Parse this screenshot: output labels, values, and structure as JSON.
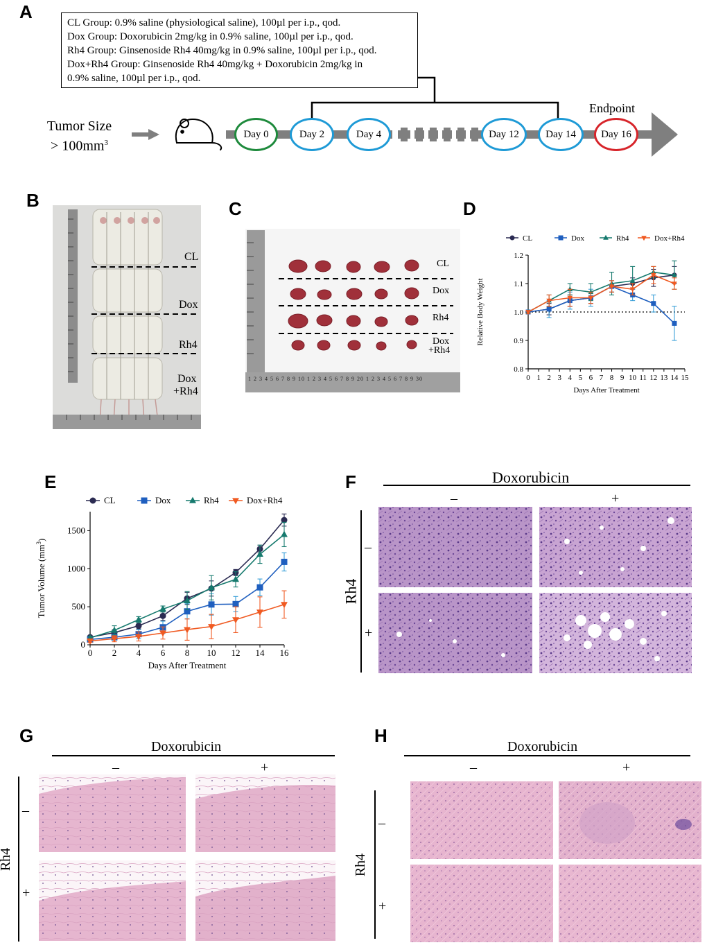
{
  "panels": {
    "a": "A",
    "b": "B",
    "c": "C",
    "d": "D",
    "e": "E",
    "f": "F",
    "g": "G",
    "h": "H"
  },
  "protocol": {
    "lines": [
      "CL Group: 0.9% saline (physiological saline), 100µl per i.p., qod.",
      "Dox Group: Doxorubicin 2mg/kg in 0.9% saline, 100µl per i.p., qod.",
      "Rh4 Group: Ginsenoside Rh4 40mg/kg in 0.9% saline, 100µl per i.p., qod.",
      "Dox+Rh4 Group: Ginsenoside Rh4 40mg/kg + Doxorubicin 2mg/kg in",
      "0.9% saline, 100µl per i.p., qod."
    ]
  },
  "timeline": {
    "tumor_size_line1": "Tumor Size",
    "tumor_size_line2": "> 100mm",
    "tumor_size_sup": "3",
    "endpoint": "Endpoint",
    "days": [
      "Day 0",
      "Day 2",
      "Day 4",
      "Day 12",
      "Day 14",
      "Day 16"
    ],
    "colors": {
      "start": "#1e8a3c",
      "treatment": "#1e9ad6",
      "end": "#d7242a",
      "arrow": "#7f7f7f"
    }
  },
  "photo_b": {
    "labels": [
      "CL",
      "Dox",
      "Rh4",
      "Dox",
      "+Rh4"
    ]
  },
  "photo_c": {
    "labels": [
      "CL",
      "Dox",
      "Rh4",
      "Dox",
      "+Rh4"
    ],
    "ruler_ticks": "1 2 3 4 5 6 7 8 9 10 1 2 3 4 5 6 7 8 9 20 1 2 3 4 5 6 7 8 9 30"
  },
  "histology": {
    "doxorubicin": "Doxorubicin",
    "rh4": "Rh4",
    "minus": "–",
    "plus": "+"
  },
  "chart_data": [
    {
      "id": "D",
      "type": "line",
      "title": "",
      "xlabel": "Days After Treatment",
      "ylabel": "Relative Body Weight",
      "xlim": [
        0,
        15
      ],
      "ylim": [
        0.8,
        1.2
      ],
      "xticks": [
        0,
        1,
        2,
        3,
        4,
        5,
        6,
        7,
        8,
        9,
        10,
        11,
        12,
        13,
        14,
        15
      ],
      "yticks": [
        0.8,
        0.9,
        1.0,
        1.1,
        1.2
      ],
      "reference_line": 1.0,
      "legend": "top",
      "x": [
        0,
        2,
        4,
        6,
        8,
        10,
        12,
        14
      ],
      "series": [
        {
          "name": "CL",
          "color": "#2b2b52",
          "marker": "circle",
          "values": [
            1.0,
            1.01,
            1.04,
            1.05,
            1.09,
            1.1,
            1.12,
            1.13
          ],
          "errors": [
            0.005,
            0.02,
            0.02,
            0.02,
            0.02,
            0.02,
            0.03,
            0.03
          ]
        },
        {
          "name": "Dox",
          "color": "#1f5fbf",
          "marker": "square",
          "values": [
            1.0,
            1.01,
            1.04,
            1.05,
            1.09,
            1.06,
            1.03,
            0.96
          ],
          "errors": [
            0.005,
            0.03,
            0.03,
            0.03,
            0.02,
            0.02,
            0.03,
            0.06
          ]
        },
        {
          "name": "Rh4",
          "color": "#167a6e",
          "marker": "triangle-up",
          "values": [
            1.0,
            1.04,
            1.08,
            1.07,
            1.1,
            1.11,
            1.14,
            1.13
          ],
          "errors": [
            0.005,
            0.02,
            0.02,
            0.03,
            0.04,
            0.05,
            0.02,
            0.05
          ]
        },
        {
          "name": "Dox+Rh4",
          "color": "#f05a22",
          "marker": "triangle-down",
          "values": [
            1.0,
            1.04,
            1.05,
            1.05,
            1.09,
            1.08,
            1.13,
            1.1
          ],
          "errors": [
            0.005,
            0.02,
            0.03,
            0.02,
            0.02,
            0.02,
            0.03,
            0.02
          ]
        }
      ]
    },
    {
      "id": "E",
      "type": "line",
      "title": "",
      "xlabel": "Days After Treatment",
      "ylabel": "Tumor Volume (mm",
      "ylabel_sup": "3",
      "ylabel_close": ")",
      "xlim": [
        0,
        16
      ],
      "ylim": [
        0,
        1750
      ],
      "xticks": [
        0,
        2,
        4,
        6,
        8,
        10,
        12,
        14,
        16
      ],
      "yticks": [
        0,
        500,
        1000,
        1500
      ],
      "legend": "top",
      "x": [
        0,
        2,
        4,
        6,
        8,
        10,
        12,
        14,
        16
      ],
      "series": [
        {
          "name": "CL",
          "color": "#2b2b52",
          "marker": "circle",
          "values": [
            100,
            160,
            250,
            380,
            610,
            740,
            950,
            1260,
            1640
          ],
          "errors": [
            20,
            40,
            40,
            60,
            80,
            100,
            40,
            50,
            80
          ]
        },
        {
          "name": "Dox",
          "color": "#1f5fbf",
          "marker": "square",
          "values": [
            70,
            100,
            140,
            230,
            440,
            530,
            535,
            755,
            1090
          ],
          "errors": [
            20,
            40,
            60,
            80,
            100,
            140,
            100,
            110,
            120
          ]
        },
        {
          "name": "Rh4",
          "color": "#167a6e",
          "marker": "triangle-up",
          "values": [
            90,
            190,
            330,
            470,
            580,
            750,
            860,
            1190,
            1450
          ],
          "errors": [
            20,
            60,
            40,
            40,
            120,
            160,
            100,
            120,
            160
          ]
        },
        {
          "name": "Dox+Rh4",
          "color": "#f05a22",
          "marker": "triangle-down",
          "values": [
            50,
            80,
            110,
            155,
            200,
            240,
            330,
            430,
            530
          ],
          "errors": [
            20,
            40,
            60,
            80,
            140,
            160,
            170,
            200,
            180
          ]
        }
      ]
    }
  ]
}
